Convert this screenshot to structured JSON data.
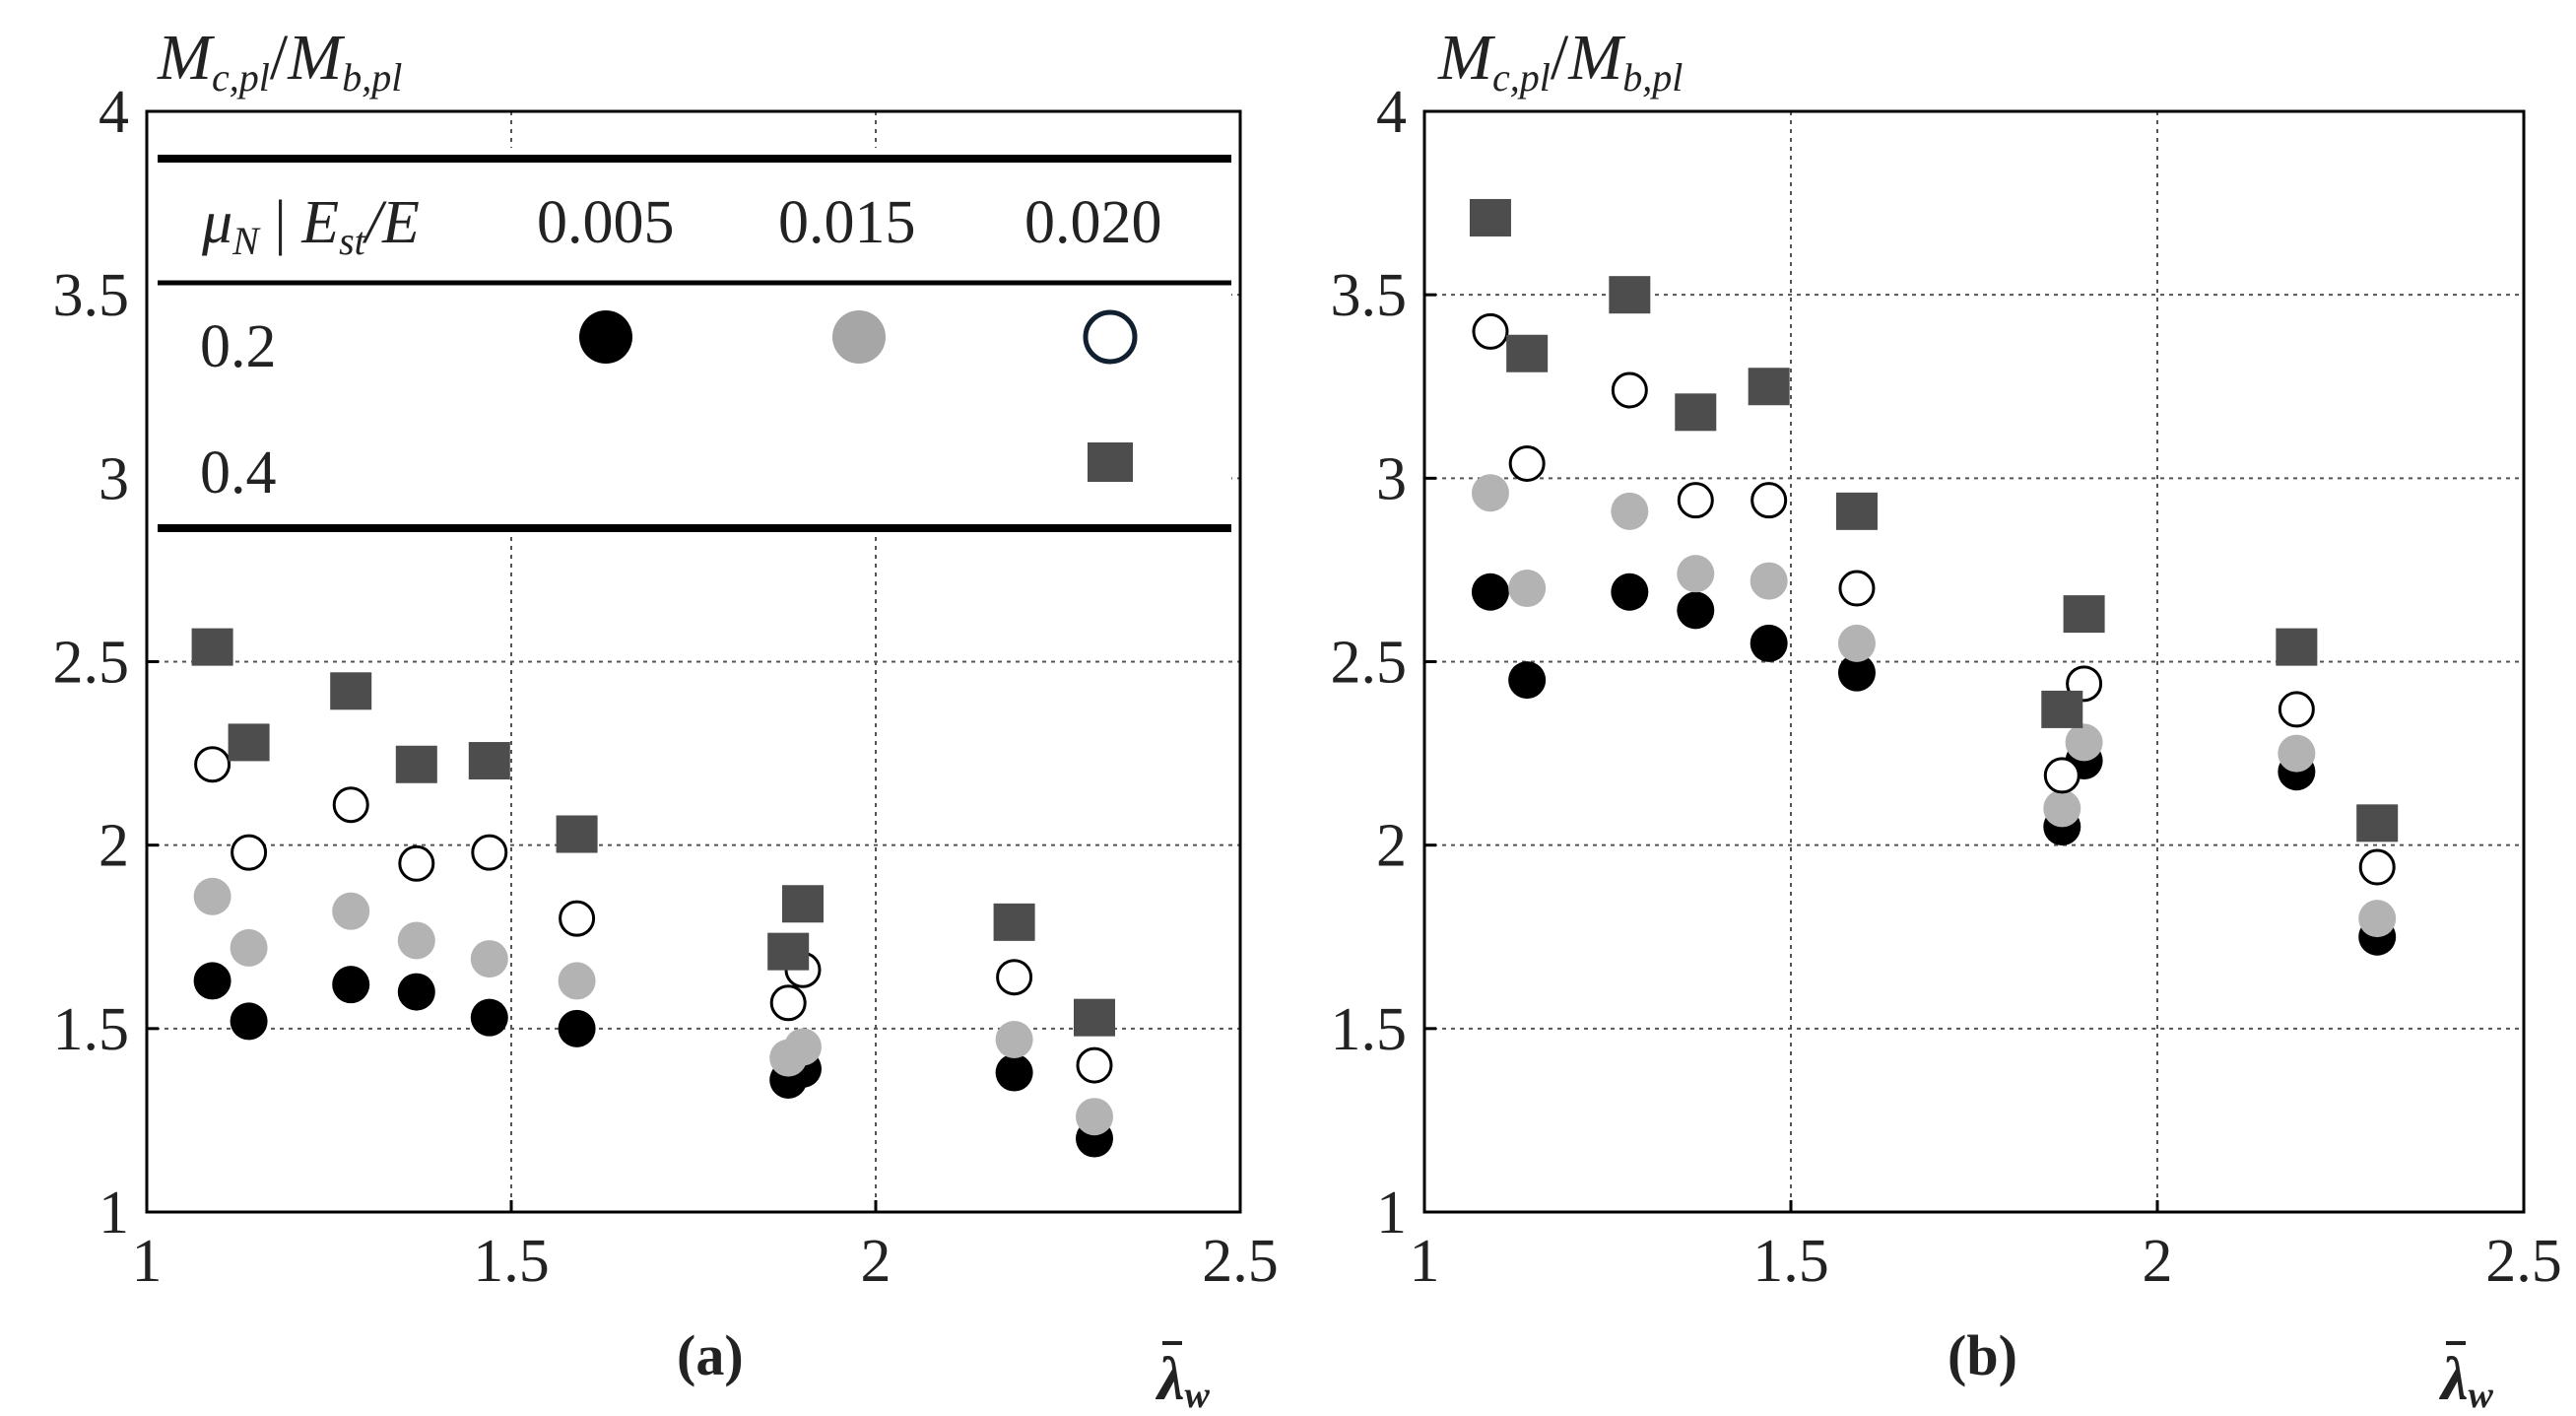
{
  "panel_a": {
    "label": "(a)"
  },
  "panel_b": {
    "label": "(b)"
  },
  "legend": {
    "header_mu": "μ",
    "header_mu_sub": "N",
    "header_sep": " | ",
    "header_e": "E",
    "header_e_sub": "st",
    "header_e_tail": "/E",
    "col1": "0.005",
    "col2": "0.015",
    "col3": "0.020",
    "row1": "0.2",
    "row2": "0.4"
  },
  "colors": {
    "black": "#000000",
    "gray": "#b3b3b3",
    "legend_gray": "#a6a6a6",
    "square": "#4d4d4d",
    "open": "#ffffff"
  },
  "chart_data": [
    {
      "type": "scatter",
      "title": "(a)",
      "ylabel": "Mc,pl/Mb,pl",
      "xlabel": "λw (bar)",
      "ylabel_parts": {
        "m1": "M",
        "s1": "c,pl",
        "slash": "/",
        "m2": "M",
        "s2": "b,pl"
      },
      "xlabel_parts": {
        "lam": "λ",
        "sub": "w"
      },
      "xlim": [
        1,
        2.5
      ],
      "ylim": [
        1,
        4
      ],
      "xticks": [
        "1",
        "1.5",
        "2",
        "2.5"
      ],
      "yticks": [
        "1",
        "1.5",
        "2",
        "2.5",
        "3",
        "3.5",
        "4"
      ],
      "grid": true,
      "series": [
        {
          "name": "μN=0.2, Est/E=0.005",
          "marker": "filled-black-circle",
          "x": [
            1.09,
            1.14,
            1.28,
            1.37,
            1.47,
            1.59,
            1.88,
            1.9,
            2.19,
            2.3
          ],
          "y": [
            1.63,
            1.52,
            1.62,
            1.6,
            1.53,
            1.5,
            1.36,
            1.39,
            1.38,
            1.2
          ]
        },
        {
          "name": "μN=0.2, Est/E=0.015",
          "marker": "filled-gray-circle",
          "x": [
            1.09,
            1.14,
            1.28,
            1.37,
            1.47,
            1.59,
            1.88,
            1.9,
            2.19,
            2.3
          ],
          "y": [
            1.86,
            1.72,
            1.82,
            1.74,
            1.69,
            1.63,
            1.42,
            1.45,
            1.47,
            1.26
          ]
        },
        {
          "name": "μN=0.2, Est/E=0.020",
          "marker": "open-circle",
          "x": [
            1.09,
            1.14,
            1.28,
            1.37,
            1.47,
            1.59,
            1.88,
            1.9,
            2.19,
            2.3
          ],
          "y": [
            2.22,
            1.98,
            2.11,
            1.95,
            1.98,
            1.8,
            1.57,
            1.66,
            1.64,
            1.4
          ]
        },
        {
          "name": "μN=0.4, Est/E=0.020",
          "marker": "square",
          "x": [
            1.09,
            1.14,
            1.28,
            1.37,
            1.47,
            1.59,
            1.88,
            1.9,
            2.19,
            2.3
          ],
          "y": [
            2.54,
            2.28,
            2.42,
            2.22,
            2.23,
            2.03,
            1.71,
            1.84,
            1.79,
            1.53
          ]
        }
      ]
    },
    {
      "type": "scatter",
      "title": "(b)",
      "ylabel": "Mc,pl/Mb,pl",
      "xlabel": "λw (bar)",
      "ylabel_parts": {
        "m1": "M",
        "s1": "c,pl",
        "slash": "/",
        "m2": "M",
        "s2": "b,pl"
      },
      "xlabel_parts": {
        "lam": "λ",
        "sub": "w"
      },
      "xlim": [
        1,
        2.5
      ],
      "ylim": [
        1,
        4
      ],
      "xticks": [
        "1",
        "1.5",
        "2",
        "2.5"
      ],
      "yticks": [
        "1",
        "1.5",
        "2",
        "2.5",
        "3",
        "3.5",
        "4"
      ],
      "grid": true,
      "series": [
        {
          "name": "μN=0.2, Est/E=0.005",
          "marker": "filled-black-circle",
          "x": [
            1.09,
            1.14,
            1.28,
            1.37,
            1.47,
            1.59,
            1.87,
            1.9,
            2.19,
            2.3
          ],
          "y": [
            2.69,
            2.45,
            2.69,
            2.64,
            2.55,
            2.47,
            2.05,
            2.23,
            2.2,
            1.75
          ]
        },
        {
          "name": "μN=0.2, Est/E=0.015",
          "marker": "filled-gray-circle",
          "x": [
            1.09,
            1.14,
            1.28,
            1.37,
            1.47,
            1.59,
            1.87,
            1.9,
            2.19,
            2.3
          ],
          "y": [
            2.96,
            2.7,
            2.91,
            2.74,
            2.72,
            2.55,
            2.1,
            2.28,
            2.25,
            1.8
          ]
        },
        {
          "name": "μN=0.2, Est/E=0.020",
          "marker": "open-circle",
          "x": [
            1.09,
            1.14,
            1.28,
            1.37,
            1.47,
            1.59,
            1.87,
            1.9,
            2.19,
            2.3
          ],
          "y": [
            3.4,
            3.04,
            3.24,
            2.94,
            2.94,
            2.7,
            2.19,
            2.44,
            2.37,
            1.94
          ]
        },
        {
          "name": "μN=0.4, Est/E=0.020",
          "marker": "square",
          "x": [
            1.09,
            1.14,
            1.28,
            1.37,
            1.47,
            1.59,
            1.87,
            1.9,
            2.19,
            2.3
          ],
          "y": [
            3.71,
            3.34,
            3.5,
            3.18,
            3.25,
            2.91,
            2.37,
            2.63,
            2.54,
            2.06
          ]
        }
      ]
    }
  ]
}
